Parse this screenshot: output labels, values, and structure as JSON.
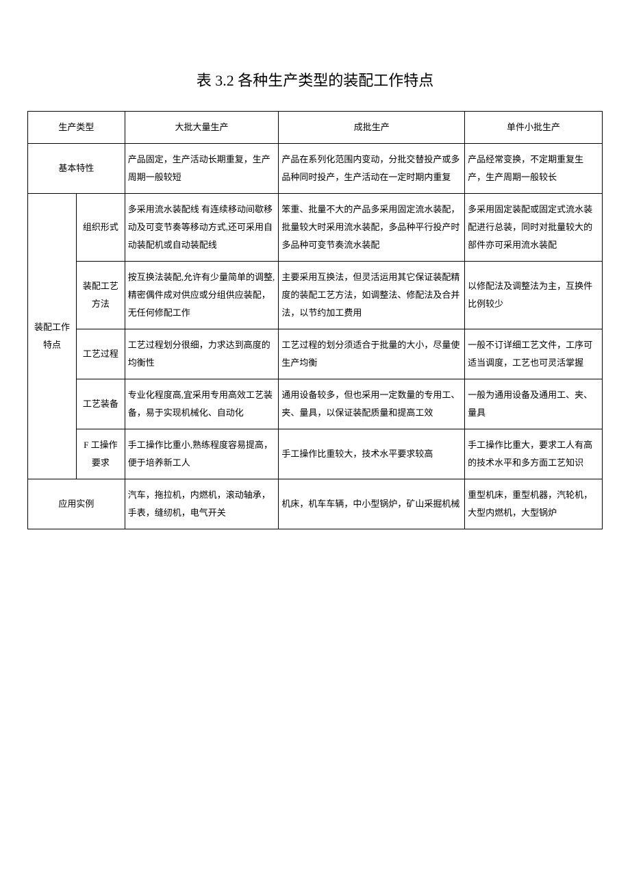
{
  "title": "表 3.2 各种生产类型的装配工作特点",
  "header": {
    "c0": "生产类型",
    "c1": "大批大量生产",
    "c2": "成批生产",
    "c3": "单件小批生产"
  },
  "rows": {
    "basic": {
      "label": "基本特性",
      "c1": "产品固定，生产活动长期重复，生产周期一般较短",
      "c2": "产品在系列化范围内变动，分批交替投产或多品种同时投产，生产活动在一定时期内重复",
      "c3": "产品经常变换，不定期重复生产，生产周期一般较长"
    },
    "group_label": "装配工作特点",
    "org": {
      "label": "组织形式",
      "c1": "多采用流水装配线 有连续移动间歇移动及可变节奏等移动方式,还可采用自动装配机或自动装配线",
      "c2": "笨重、批量不大的产品多采用固定流水装配，批量较大时采用流水装配，多品种平行投产时多品种可变节奏流水装配",
      "c3": "多采用固定装配或固定式流水装配进行总装，同时对批量较大的部件亦可采用流水装配"
    },
    "method": {
      "label": "装配工艺方法",
      "c1": "按互换法装配,允许有少量简单的调整,精密偶件成对供应或分组供应装配，无任何修配工作",
      "c2": "主要采用互换法，但灵活运用其它保证装配精度的装配工艺方法，如调整法、修配法及合并法，以节约加工费用",
      "c3": "以修配法及调整法为主，互换件比例较少"
    },
    "process": {
      "label": "工艺过程",
      "c1": "工艺过程划分很细，力求达到高度的均衡性",
      "c2": "工艺过程的划分须适合于批量的大小，尽量使生产均衡",
      "c3": "一般不订详细工艺文件，工序可适当调度，工艺也可灵活掌握"
    },
    "equip": {
      "label": "工艺装备",
      "c1": "专业化程度高,宜采用专用高效工艺装备，易于实现机械化、自动化",
      "c2": "通用设备较多，但也采用一定数量的专用工、夹、量具，以保证装配质量和提高工效",
      "c3": "一般为通用设备及通用工、夹、量具"
    },
    "worker": {
      "label": "F 工操作要求",
      "c1": "手工操作比重小,熟练程度容易提高，便于培养新工人",
      "c2": "手工操作比重较大，技术水平要求较高",
      "c3": "手工操作比重大，要求工人有高的技术水平和多方面工艺知识"
    },
    "example": {
      "label": "应用实例",
      "c1": "汽车，拖拉机，内燃机，滚动轴承，手表，缝纫机，电气开关",
      "c2": "机床，机车车辆，中小型锅炉，矿山采掘机械",
      "c3": "重型机床，重型机器，汽轮机，大型内燃机，大型锅炉"
    }
  }
}
